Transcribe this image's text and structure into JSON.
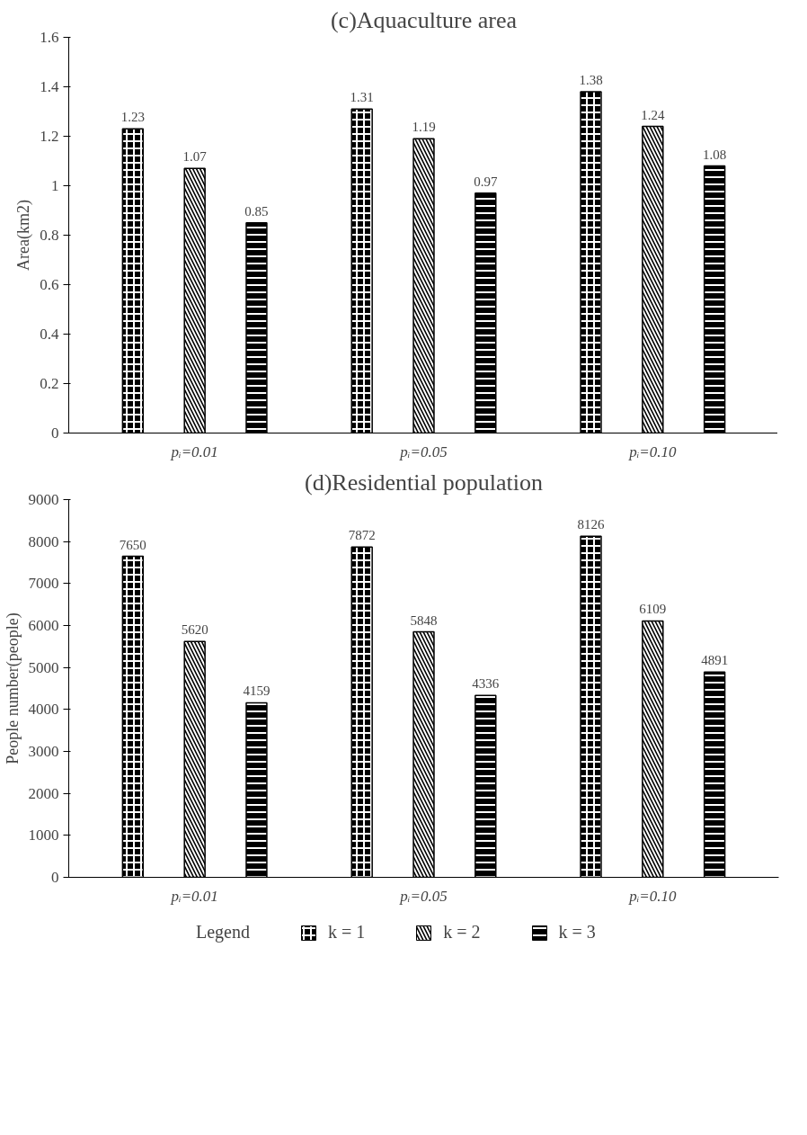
{
  "chart_data": [
    {
      "type": "bar",
      "title": "(c)Aquaculture area",
      "ylabel": "Area(km2)",
      "categories": [
        "pᵢ=0.01",
        "pᵢ=0.05",
        "pᵢ=0.10"
      ],
      "series": [
        {
          "color": "#000000",
          "values": [
            1.23,
            1.31,
            1.38
          ]
        },
        {
          "color": "#000000",
          "values": [
            1.07,
            1.19,
            1.24
          ]
        },
        {
          "color": "#000000",
          "values": [
            0.85,
            0.97,
            1.08
          ]
        }
      ],
      "ylim": [
        0,
        1.6
      ],
      "yticks": [
        0,
        0.2,
        0.4,
        0.6,
        0.8,
        1,
        1.2,
        1.4,
        1.6
      ],
      "data_labels": true,
      "grid": false,
      "legend": false
    },
    {
      "type": "bar",
      "title": "(d)Residential population",
      "ylabel": "People number(people)",
      "categories": [
        "pᵢ=0.01",
        "pᵢ=0.05",
        "pᵢ=0.10"
      ],
      "legend_title": "Legend",
      "series": [
        {
          "name": "k = 1",
          "color": "#000000",
          "values": [
            7650,
            7872,
            8126
          ]
        },
        {
          "name": "k = 2",
          "color": "#000000",
          "values": [
            5620,
            5848,
            6109
          ]
        },
        {
          "name": "k = 3",
          "color": "#000000",
          "values": [
            4159,
            4336,
            4891
          ]
        }
      ],
      "ylim": [
        0,
        9000
      ],
      "yticks": [
        0,
        1000,
        2000,
        3000,
        4000,
        5000,
        6000,
        7000,
        8000,
        9000
      ],
      "data_labels": true,
      "grid": false,
      "legend": "bottom"
    }
  ]
}
